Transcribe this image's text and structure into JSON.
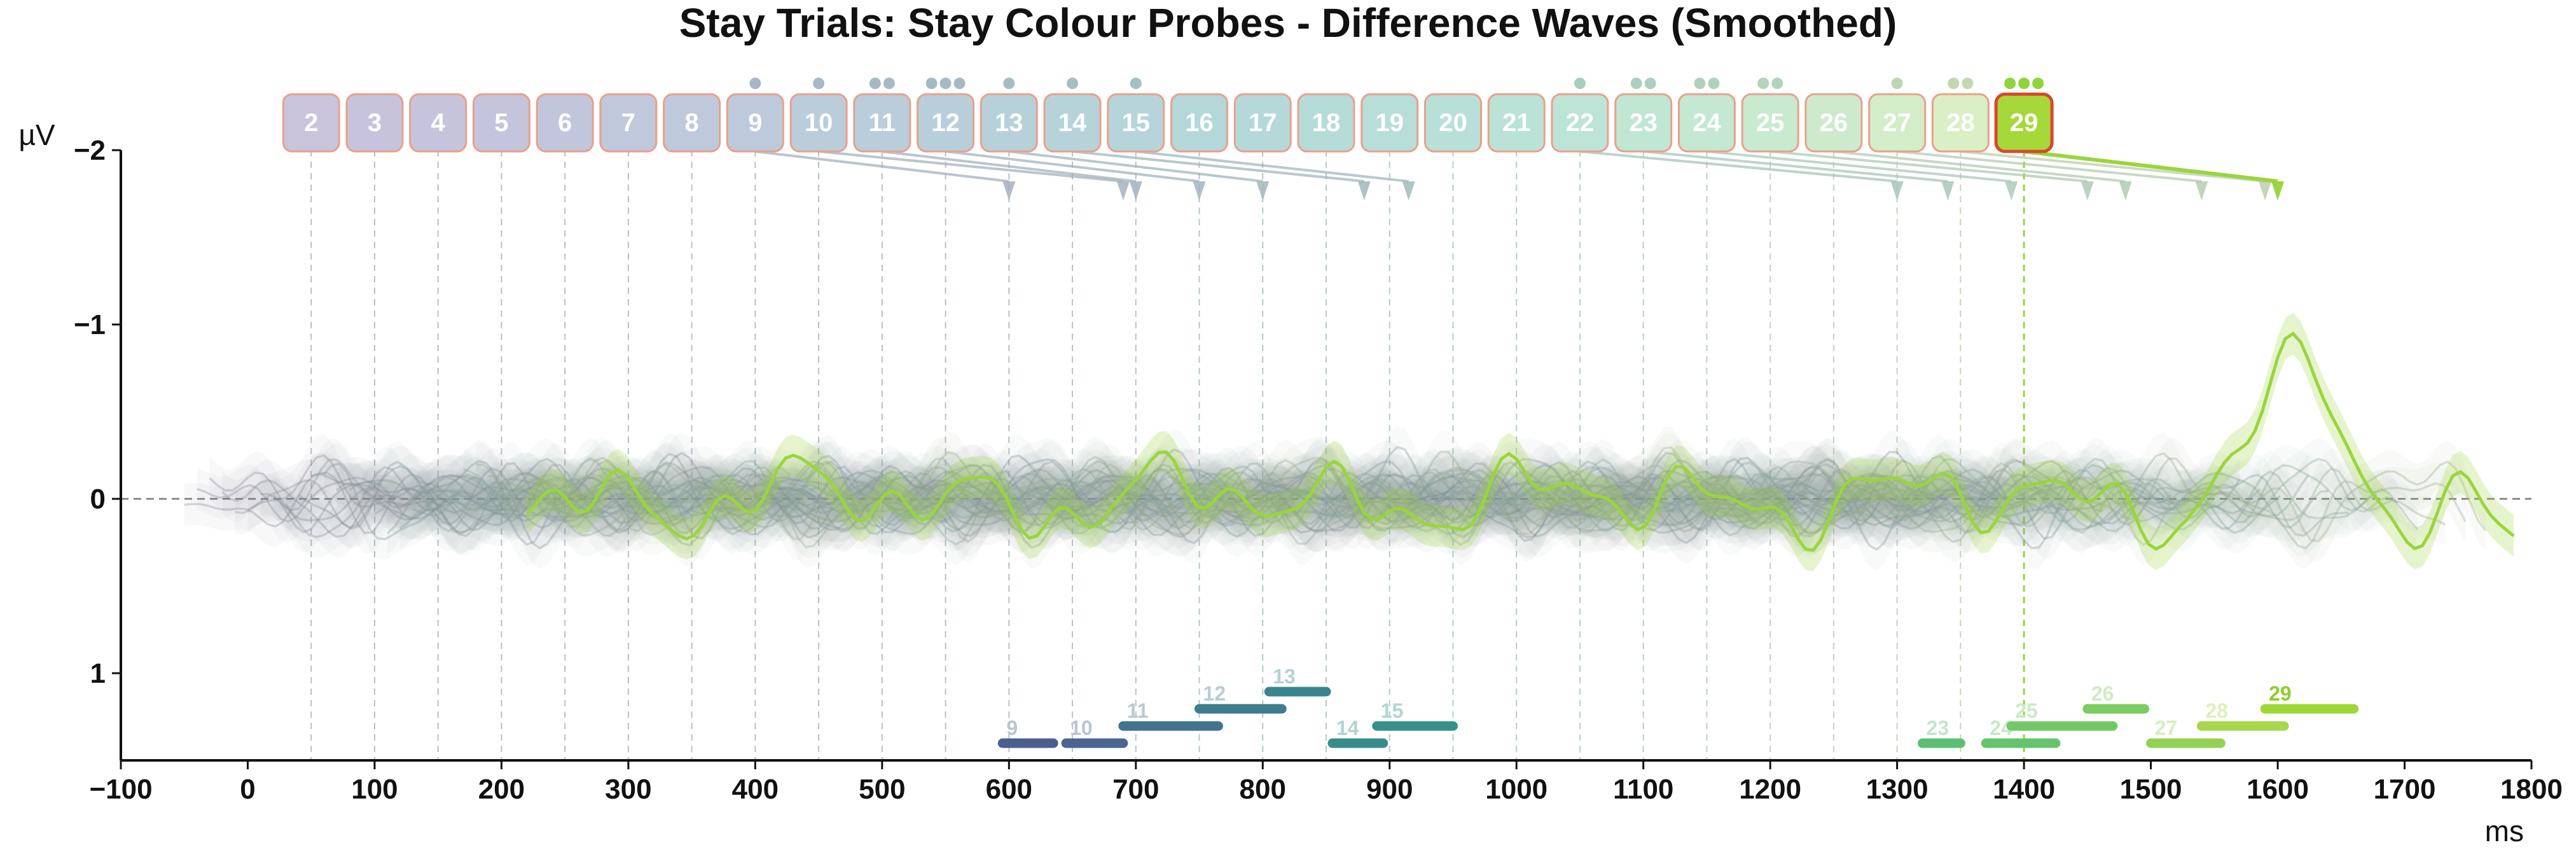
{
  "chart_data": {
    "type": "line",
    "title": "Stay Trials: Stay Colour Probes - Difference Waves (Smoothed)",
    "xlabel": "ms",
    "ylabel": "µV",
    "xlim": [
      -100,
      1800
    ],
    "ylim": [
      -2,
      1.5
    ],
    "y_inverted": true,
    "xticks": [
      -100,
      0,
      100,
      200,
      300,
      400,
      500,
      600,
      700,
      800,
      900,
      1000,
      1100,
      1200,
      1300,
      1400,
      1500,
      1600,
      1700,
      1800
    ],
    "xtick_labels": [
      "−100",
      "0",
      "100",
      "200",
      "300",
      "400",
      "500",
      "600",
      "700",
      "800",
      "900",
      "1000",
      "1100",
      "1200",
      "1300",
      "1400",
      "1500",
      "1600",
      "1700",
      "1800"
    ],
    "yticks": [
      -2,
      -1,
      0,
      1
    ],
    "ytick_labels": [
      "−2",
      "−1",
      "0",
      "1"
    ],
    "zero_line": true,
    "highlighted_probe": "29",
    "probes": [
      {
        "label": "2",
        "onset_ms": 50,
        "color": "#c9c3dc",
        "dots": 0,
        "peak_ms": null
      },
      {
        "label": "3",
        "onset_ms": 100,
        "color": "#c8c3dc",
        "dots": 0,
        "peak_ms": null
      },
      {
        "label": "4",
        "onset_ms": 150,
        "color": "#c6c4dc",
        "dots": 0,
        "peak_ms": null
      },
      {
        "label": "5",
        "onset_ms": 200,
        "color": "#c4c5dc",
        "dots": 0,
        "peak_ms": null
      },
      {
        "label": "6",
        "onset_ms": 250,
        "color": "#c2c6dc",
        "dots": 0,
        "peak_ms": null
      },
      {
        "label": "7",
        "onset_ms": 300,
        "color": "#c0c8dc",
        "dots": 0,
        "peak_ms": null
      },
      {
        "label": "8",
        "onset_ms": 350,
        "color": "#bfc9dc",
        "dots": 0,
        "peak_ms": null
      },
      {
        "label": "9",
        "onset_ms": 400,
        "color": "#bccadb",
        "dots": 1,
        "peak_ms": 600
      },
      {
        "label": "10",
        "onset_ms": 450,
        "color": "#bbccdb",
        "dots": 1,
        "peak_ms": 690
      },
      {
        "label": "11",
        "onset_ms": 500,
        "color": "#b9cddb",
        "dots": 2,
        "peak_ms": 700
      },
      {
        "label": "12",
        "onset_ms": 550,
        "color": "#b8cfdb",
        "dots": 3,
        "peak_ms": 750
      },
      {
        "label": "13",
        "onset_ms": 600,
        "color": "#b7d1db",
        "dots": 1,
        "peak_ms": 800
      },
      {
        "label": "14",
        "onset_ms": 650,
        "color": "#b6d3da",
        "dots": 1,
        "peak_ms": 880
      },
      {
        "label": "15",
        "onset_ms": 700,
        "color": "#b5d5da",
        "dots": 1,
        "peak_ms": 915
      },
      {
        "label": "16",
        "onset_ms": 750,
        "color": "#b4d7da",
        "dots": 0,
        "peak_ms": null
      },
      {
        "label": "17",
        "onset_ms": 800,
        "color": "#b5d9da",
        "dots": 0,
        "peak_ms": null
      },
      {
        "label": "18",
        "onset_ms": 850,
        "color": "#b6dcda",
        "dots": 0,
        "peak_ms": null
      },
      {
        "label": "19",
        "onset_ms": 900,
        "color": "#b7ded9",
        "dots": 0,
        "peak_ms": null
      },
      {
        "label": "20",
        "onset_ms": 950,
        "color": "#b9e0d8",
        "dots": 0,
        "peak_ms": null
      },
      {
        "label": "21",
        "onset_ms": 1000,
        "color": "#bbe2d7",
        "dots": 0,
        "peak_ms": null
      },
      {
        "label": "22",
        "onset_ms": 1050,
        "color": "#bde4d6",
        "dots": 1,
        "peak_ms": 1300
      },
      {
        "label": "23",
        "onset_ms": 1100,
        "color": "#c0e6d4",
        "dots": 2,
        "peak_ms": 1340
      },
      {
        "label": "24",
        "onset_ms": 1150,
        "color": "#c4e8d2",
        "dots": 2,
        "peak_ms": 1390
      },
      {
        "label": "25",
        "onset_ms": 1200,
        "color": "#c8eacf",
        "dots": 2,
        "peak_ms": 1450
      },
      {
        "label": "26",
        "onset_ms": 1250,
        "color": "#cdebcc",
        "dots": 0,
        "peak_ms": 1480
      },
      {
        "label": "27",
        "onset_ms": 1300,
        "color": "#d3edc8",
        "dots": 1,
        "peak_ms": 1540
      },
      {
        "label": "28",
        "onset_ms": 1350,
        "color": "#daefc4",
        "dots": 2,
        "peak_ms": 1590
      },
      {
        "label": "29",
        "onset_ms": 1400,
        "color": "#a6d839",
        "dots": 3,
        "peak_ms": 1600
      }
    ],
    "significance_segments": [
      {
        "label": "9",
        "start_ms": 595,
        "end_ms": 635,
        "level": 0,
        "color": "#4a5e8f"
      },
      {
        "label": "10",
        "start_ms": 645,
        "end_ms": 690,
        "level": 0,
        "color": "#4a6590"
      },
      {
        "label": "11",
        "start_ms": 690,
        "end_ms": 765,
        "level": 1,
        "color": "#44738f"
      },
      {
        "label": "12",
        "start_ms": 750,
        "end_ms": 815,
        "level": 2,
        "color": "#3f7c8e"
      },
      {
        "label": "13",
        "start_ms": 805,
        "end_ms": 850,
        "level": 3,
        "color": "#3b848e"
      },
      {
        "label": "14",
        "start_ms": 855,
        "end_ms": 895,
        "level": 0,
        "color": "#388b8c"
      },
      {
        "label": "15",
        "start_ms": 890,
        "end_ms": 950,
        "level": 1,
        "color": "#35918a"
      },
      {
        "label": "23",
        "start_ms": 1320,
        "end_ms": 1350,
        "level": 0,
        "color": "#5dbf74"
      },
      {
        "label": "24",
        "start_ms": 1370,
        "end_ms": 1425,
        "level": 0,
        "color": "#66c46c"
      },
      {
        "label": "25",
        "start_ms": 1390,
        "end_ms": 1470,
        "level": 1,
        "color": "#72c866"
      },
      {
        "label": "26",
        "start_ms": 1450,
        "end_ms": 1495,
        "level": 2,
        "color": "#7dcc5e"
      },
      {
        "label": "27",
        "start_ms": 1500,
        "end_ms": 1555,
        "level": 0,
        "color": "#93d154"
      },
      {
        "label": "28",
        "start_ms": 1540,
        "end_ms": 1605,
        "level": 1,
        "color": "#a5d84c"
      },
      {
        "label": "29",
        "start_ms": 1590,
        "end_ms": 1660,
        "level": 2,
        "color": "#9ed838"
      }
    ]
  }
}
